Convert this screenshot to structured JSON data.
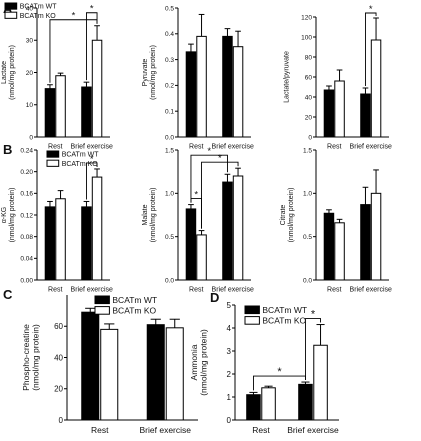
{
  "panel_letters": [
    "A",
    "B",
    "C",
    "D"
  ],
  "star": "*",
  "chart_data": [
    {
      "id": "lactate",
      "panel": "A",
      "type": "bar",
      "ylabel_lines": [
        "Lactate",
        "(nmol/mg protein)"
      ],
      "categories": [
        "Rest",
        "Brief exercise"
      ],
      "series": [
        {
          "name": "BCATm WT",
          "values": [
            15,
            15.5
          ],
          "errors": [
            1.2,
            1.5
          ],
          "color": "#000000"
        },
        {
          "name": "BCATm KO",
          "values": [
            19,
            30
          ],
          "errors": [
            0.8,
            4.5
          ],
          "color": "#ffffff"
        }
      ],
      "ylim": [
        0,
        40
      ],
      "ticks": [
        0,
        10,
        20,
        30,
        40
      ],
      "legend": "top-left",
      "significance": [
        {
          "from": [
            0,
            0
          ],
          "to": [
            1,
            1
          ],
          "label": "*"
        },
        {
          "from": [
            1,
            0
          ],
          "to": [
            1,
            1
          ],
          "label": "*"
        }
      ]
    },
    {
      "id": "pyruvate",
      "panel": "A",
      "type": "bar",
      "ylabel_lines": [
        "Pyruvate",
        "(nmol/mg protein)"
      ],
      "categories": [
        "Rest",
        "Brief exercise"
      ],
      "series": [
        {
          "name": "BCATm WT",
          "values": [
            0.33,
            0.39
          ],
          "errors": [
            0.03,
            0.03
          ],
          "color": "#000000"
        },
        {
          "name": "BCATm KO",
          "values": [
            0.39,
            0.35
          ],
          "errors": [
            0.085,
            0.06
          ],
          "color": "#ffffff"
        }
      ],
      "ylim": [
        0,
        0.5
      ],
      "ticks": [
        0.0,
        0.1,
        0.2,
        0.3,
        0.4,
        0.5
      ],
      "significance": []
    },
    {
      "id": "lactate-pyruvate",
      "panel": "A",
      "type": "bar",
      "ylabel_lines": [
        "Lactate/pyruvate"
      ],
      "categories": [
        "Rest",
        "Brief exercise"
      ],
      "series": [
        {
          "name": "BCATm WT",
          "values": [
            47,
            43
          ],
          "errors": [
            4,
            6
          ],
          "color": "#000000"
        },
        {
          "name": "BCATm KO",
          "values": [
            56,
            97
          ],
          "errors": [
            11,
            22
          ],
          "color": "#ffffff"
        }
      ],
      "ylim": [
        0,
        120
      ],
      "ticks": [
        0,
        20,
        40,
        60,
        80,
        100,
        120
      ],
      "significance": [
        {
          "from": [
            1,
            0
          ],
          "to": [
            1,
            1
          ],
          "label": "*"
        }
      ]
    },
    {
      "id": "akg",
      "panel": "B",
      "type": "bar",
      "ylabel_lines": [
        "α-KG",
        "(nmol/mg protein)"
      ],
      "categories": [
        "Rest",
        "Brief exercise"
      ],
      "series": [
        {
          "name": "BCATm WT",
          "values": [
            0.135,
            0.135
          ],
          "errors": [
            0.01,
            0.01
          ],
          "color": "#000000"
        },
        {
          "name": "BCATm KO",
          "values": [
            0.15,
            0.19
          ],
          "errors": [
            0.015,
            0.015
          ],
          "color": "#ffffff"
        }
      ],
      "ylim": [
        0,
        0.24
      ],
      "ticks": [
        0.0,
        0.04,
        0.08,
        0.12,
        0.16,
        0.2,
        0.24
      ],
      "legend": "top-left",
      "significance": [
        {
          "from": [
            1,
            0
          ],
          "to": [
            1,
            1
          ],
          "label": "*"
        }
      ]
    },
    {
      "id": "malate",
      "panel": "B",
      "type": "bar",
      "ylabel_lines": [
        "Malate",
        "(nmol/mg protein)"
      ],
      "categories": [
        "Rest",
        "Brief exercise"
      ],
      "series": [
        {
          "name": "BCATm WT",
          "values": [
            0.82,
            1.13
          ],
          "errors": [
            0.05,
            0.09
          ],
          "color": "#000000"
        },
        {
          "name": "BCATm KO",
          "values": [
            0.52,
            1.2
          ],
          "errors": [
            0.05,
            0.09
          ],
          "color": "#ffffff"
        }
      ],
      "ylim": [
        0,
        1.5
      ],
      "ticks": [
        0.0,
        0.5,
        1.0,
        1.5
      ],
      "significance": [
        {
          "from": [
            0,
            0
          ],
          "to": [
            0,
            1
          ],
          "label": "*"
        },
        {
          "from": [
            0,
            1
          ],
          "to": [
            1,
            1
          ],
          "label": "*"
        },
        {
          "from": [
            0,
            0
          ],
          "to": [
            1,
            0
          ],
          "label": "*"
        }
      ]
    },
    {
      "id": "citrate",
      "panel": "B",
      "type": "bar",
      "ylabel_lines": [
        "Citrate",
        "(nmol/mg protein)"
      ],
      "categories": [
        "Rest",
        "Brief exercise"
      ],
      "series": [
        {
          "name": "BCATm WT",
          "values": [
            0.77,
            0.87
          ],
          "errors": [
            0.04,
            0.2
          ],
          "color": "#000000"
        },
        {
          "name": "BCATm KO",
          "values": [
            0.66,
            1.0
          ],
          "errors": [
            0.04,
            0.27
          ],
          "color": "#ffffff"
        }
      ],
      "ylim": [
        0,
        1.5
      ],
      "ticks": [
        0.0,
        0.5,
        1.0,
        1.5
      ],
      "significance": []
    },
    {
      "id": "phosphocreatine",
      "panel": "C",
      "type": "bar",
      "ylabel_lines": [
        "Phospho-creatine",
        "(nmol/mg protein)"
      ],
      "categories": [
        "Rest",
        "Brief exercise"
      ],
      "series": [
        {
          "name": "BCATm WT",
          "values": [
            69,
            61
          ],
          "errors": [
            2.5,
            3.5
          ],
          "color": "#000000"
        },
        {
          "name": "BCATm KO",
          "values": [
            58,
            59
          ],
          "errors": [
            3.5,
            5.5
          ],
          "color": "#ffffff"
        }
      ],
      "ylim": [
        0,
        80
      ],
      "ticks": [
        0,
        20,
        40,
        60
      ],
      "legend": "top-right",
      "significance": []
    },
    {
      "id": "ammonia",
      "panel": "D",
      "type": "bar",
      "ylabel_lines": [
        "Ammonia",
        "(nmol/mg protein)"
      ],
      "categories": [
        "Rest",
        "Brief exercise"
      ],
      "series": [
        {
          "name": "BCATm WT",
          "values": [
            1.1,
            1.55
          ],
          "errors": [
            0.1,
            0.1
          ],
          "color": "#000000"
        },
        {
          "name": "BCATm KO",
          "values": [
            1.4,
            3.25
          ],
          "errors": [
            0.07,
            0.9
          ],
          "color": "#ffffff"
        }
      ],
      "ylim": [
        0,
        5
      ],
      "ticks": [
        0,
        1,
        2,
        3,
        4,
        5
      ],
      "legend": "top-left",
      "significance": [
        {
          "from": [
            0,
            0
          ],
          "to": [
            1,
            0
          ],
          "label": "*"
        },
        {
          "from": [
            1,
            0
          ],
          "to": [
            1,
            1
          ],
          "label": "*"
        }
      ]
    }
  ]
}
